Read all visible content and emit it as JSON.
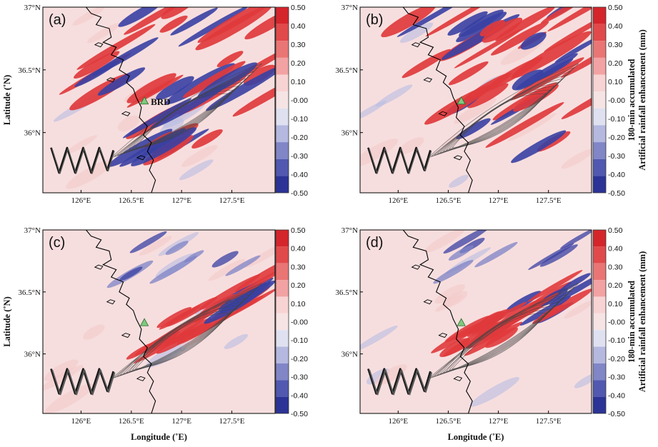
{
  "panel_labels": [
    "(a)",
    "(b)",
    "(c)",
    "(d)"
  ],
  "axes": {
    "xlabel": "Longitude (˚E)",
    "ylabel": "Latitude (˚N)",
    "xticks": [
      "126°E",
      "126.5°E",
      "127°E",
      "127.5°E"
    ],
    "yticks": [
      "37°N",
      "36.5°N",
      "36°N"
    ]
  },
  "site_label": "BRD",
  "colorbar": {
    "title_line1": "180-min accumulated",
    "title_line2": "Artificial rainfall enhancement (mm)",
    "ticks": [
      "0.50",
      "0.40",
      "0.30",
      "0.20",
      "0.10",
      "-0.00",
      "-0.10",
      "-0.20",
      "-0.30",
      "-0.40",
      "-0.50"
    ],
    "colors": [
      "#d4252b",
      "#e14a4a",
      "#ea7575",
      "#f2a2a2",
      "#f8d3d3",
      "#f6e3e3",
      "#dfe1f1",
      "#b5b8df",
      "#8186c7",
      "#5158b0",
      "#2b3396"
    ]
  },
  "colors": {
    "background_fill": "#f7dede",
    "strong_red": "#e03a3c",
    "strong_blue": "#3940a3",
    "light_blue": "#b8bce3",
    "coast": "#000000",
    "contour": "#333333",
    "site_marker": "#7fc97f"
  }
}
